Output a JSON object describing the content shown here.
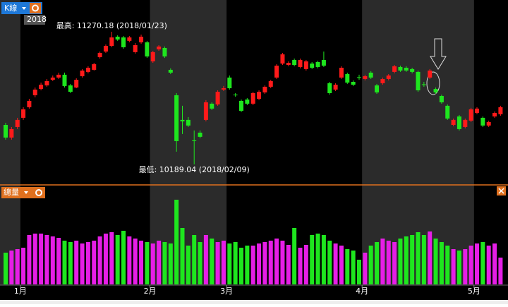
{
  "chart_data": {
    "type": "candlestick",
    "price_label": "K線",
    "year_label": "2018",
    "volume_label": "總量",
    "max_annotation": "最高: 11270.18 (2018/01/23)",
    "min_annotation": "最低: 10189.04 (2018/02/09)",
    "up_color": "#ff1a1a",
    "down_color": "#1ee61e",
    "volume_up_color": "#e61ee6",
    "volume_down_color": "#1ee61e",
    "categories": [
      null,
      null,
      null,
      "1月",
      null,
      null,
      null,
      null,
      null,
      null,
      null,
      null,
      null,
      null,
      null,
      null,
      null,
      null,
      null,
      null,
      null,
      null,
      null,
      null,
      null,
      "2月",
      null,
      null,
      null,
      null,
      null,
      null,
      null,
      null,
      null,
      null,
      null,
      null,
      "3月",
      null,
      null,
      null,
      null,
      null,
      null,
      null,
      null,
      null,
      null,
      null,
      null,
      null,
      null,
      null,
      null,
      null,
      null,
      null,
      null,
      null,
      null,
      "4月",
      null,
      null,
      null,
      null,
      null,
      null,
      null,
      null,
      null,
      null,
      null,
      null,
      null,
      null,
      null,
      null,
      null,
      null,
      "5月",
      null,
      null,
      null,
      null
    ],
    "open": [
      10511,
      10408,
      10494,
      10569,
      10655,
      10753,
      10804,
      10833,
      10879,
      10897,
      10920,
      10833,
      10816,
      10908,
      10943,
      10960,
      11063,
      11109,
      11155,
      11230,
      11224,
      11196,
      11104,
      11184,
      11184,
      11029,
      11127,
      11138,
      10960,
      10753,
      10552,
      10552,
      10385,
      10448,
      10552,
      10684,
      10678,
      10799,
      10897,
      10758,
      10707,
      10718,
      10684,
      10724,
      10776,
      10822,
      10897,
      11011,
      11000,
      11040,
      10983,
      10966,
      11011,
      11023,
      11040,
      10851,
      10799,
      10897,
      10925,
      10862,
      10900,
      10885,
      10937,
      10833,
      10851,
      10885,
      10943,
      10983,
      10977,
      10966,
      10943,
      10842,
      10897,
      10804,
      10747,
      10667,
      10511,
      10580,
      10494,
      10546,
      10609,
      10569,
      10506,
      10580,
      10598
    ],
    "high": [
      10528,
      10494,
      10569,
      10655,
      10724,
      10816,
      10856,
      10885,
      10914,
      10937,
      10937,
      10845,
      10891,
      10966,
      10989,
      11017,
      11109,
      11167,
      11270.18,
      11241,
      11236,
      11236,
      11178,
      11247,
      11196,
      11115,
      11161,
      11150,
      10972,
      10770,
      10667,
      10575,
      10466,
      10466,
      10713,
      10695,
      10793,
      10828,
      10914,
      10770,
      10718,
      10730,
      10781,
      10793,
      10833,
      10879,
      11006,
      11098,
      11029,
      11052,
      11052,
      11040,
      11023,
      11034,
      11109,
      10862,
      10851,
      10989,
      10937,
      10874,
      10920,
      10920,
      10949,
      10845,
      10897,
      10925,
      11000,
      10994,
      10989,
      10977,
      10954,
      10862,
      10966,
      10816,
      10758,
      10678,
      10563,
      10592,
      10563,
      10650,
      10655,
      10580,
      10546,
      10621,
      10667
    ],
    "low": [
      10391,
      10391,
      10477,
      10552,
      10644,
      10736,
      10793,
      10822,
      10868,
      10885,
      10816,
      10770,
      10810,
      10897,
      10931,
      10954,
      11052,
      11098,
      11144,
      11196,
      11132,
      11184,
      11092,
      11173,
      11057,
      11017,
      11115,
      11057,
      10925,
      10293,
      10437,
      10494,
      10189.04,
      10402,
      10540,
      10632,
      10667,
      10787,
      10799,
      10741,
      10615,
      10672,
      10672,
      10713,
      10764,
      10810,
      10885,
      11000,
      10989,
      10989,
      10972,
      10954,
      10966,
      10972,
      10983,
      10758,
      10787,
      10885,
      10845,
      10827,
      10879,
      10874,
      10885,
      10764,
      10839,
      10874,
      10931,
      10943,
      10943,
      10931,
      10781,
      10822,
      10885,
      10764,
      10684,
      10552,
      10500,
      10466,
      10483,
      10534,
      10598,
      10494,
      10494,
      10569,
      10586
    ],
    "close": [
      10408,
      10477,
      10552,
      10638,
      10707,
      10799,
      10839,
      10868,
      10897,
      10920,
      10828,
      10781,
      10879,
      10954,
      10977,
      11006,
      11098,
      11155,
      11224,
      11207,
      11144,
      11224,
      11161,
      11230,
      11069,
      11104,
      11150,
      11069,
      10937,
      10379,
      10540,
      10506,
      10379,
      10414,
      10695,
      10644,
      10781,
      10810,
      10810,
      10753,
      10626,
      10684,
      10770,
      10781,
      10822,
      10868,
      10994,
      11086,
      11017,
      11000,
      11040,
      11029,
      10977,
      10983,
      10994,
      10770,
      10839,
      10977,
      10856,
      10839,
      10897,
      10908,
      10897,
      10776,
      10885,
      10914,
      10989,
      10954,
      10954,
      10943,
      10793,
      10839,
      10954,
      10776,
      10695,
      10563,
      10552,
      10477,
      10552,
      10638,
      10644,
      10506,
      10534,
      10609,
      10655
    ],
    "volume": [
      45,
      48,
      50,
      52,
      70,
      72,
      72,
      70,
      68,
      66,
      62,
      60,
      62,
      58,
      60,
      62,
      68,
      72,
      74,
      70,
      76,
      68,
      65,
      62,
      60,
      58,
      62,
      60,
      58,
      120,
      80,
      55,
      70,
      60,
      70,
      65,
      60,
      62,
      58,
      60,
      52,
      55,
      55,
      58,
      60,
      62,
      65,
      62,
      56,
      80,
      52,
      56,
      70,
      72,
      70,
      62,
      58,
      55,
      50,
      48,
      35,
      45,
      55,
      60,
      65,
      62,
      60,
      65,
      68,
      70,
      74,
      70,
      75,
      65,
      60,
      55,
      50,
      48,
      50,
      55,
      58,
      60,
      55,
      58,
      38
    ]
  }
}
